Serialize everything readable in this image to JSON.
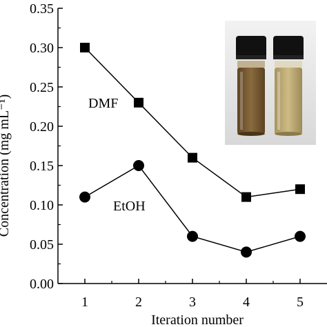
{
  "chart_data": {
    "type": "line",
    "title": "",
    "xlabel": "Iteration number",
    "ylabel": "Concentration (mg mL⁻¹)",
    "x": [
      1,
      2,
      3,
      4,
      5
    ],
    "xlim": [
      0.5,
      5.5
    ],
    "ylim": [
      0,
      0.35
    ],
    "xticks": [
      "1",
      "2",
      "3",
      "4",
      "5"
    ],
    "yticks": [
      "0.00",
      "0.05",
      "0.10",
      "0.15",
      "0.20",
      "0.25",
      "0.30",
      "0.35"
    ],
    "series": [
      {
        "name": "DMF",
        "marker": "square",
        "values": [
          0.3,
          0.23,
          0.16,
          0.11,
          0.12
        ],
        "color": "#000000"
      },
      {
        "name": "EtOH",
        "marker": "circle",
        "values": [
          0.11,
          0.15,
          0.06,
          0.04,
          0.06
        ],
        "color": "#000000"
      }
    ],
    "grid": false,
    "legend": "none",
    "inset": "photo of two capped glass vials with brown (left) and pale yellow (right) liquid"
  }
}
